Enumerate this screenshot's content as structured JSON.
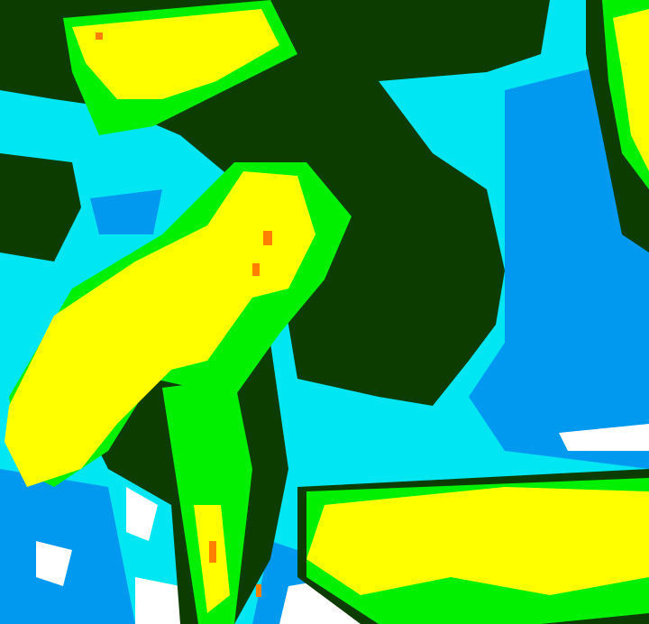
{
  "image": {
    "kind": "false-color satellite cloud imagery",
    "palette": {
      "background_cyan": "#00e6f2",
      "dark_green": "#0c3c00",
      "green": "#00f000",
      "yellow": "#ffff00",
      "orange": "#ff8000",
      "blue": "#0099f0",
      "white": "#ffffff"
    }
  }
}
